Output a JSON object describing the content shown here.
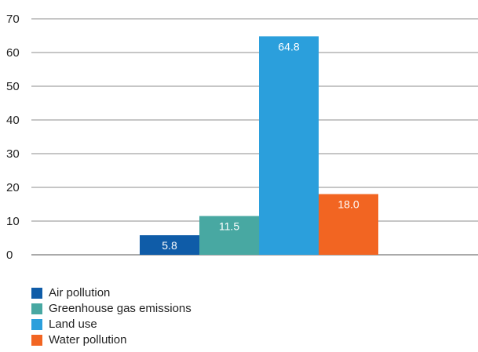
{
  "chart_data": {
    "type": "bar",
    "categories": [
      "Air pollution",
      "Greenhouse gas emissions",
      "Land use",
      "Water pollution"
    ],
    "values": [
      5.8,
      11.5,
      64.8,
      18.0
    ],
    "value_labels": [
      "5.8",
      "11.5",
      "64.8",
      "18.0"
    ],
    "colors": [
      "#0f5ca8",
      "#48a8a2",
      "#2b9fdc",
      "#f26522"
    ],
    "title": "",
    "xlabel": "",
    "ylabel": "",
    "ylim": [
      0,
      70
    ],
    "yticks": [
      0,
      10,
      20,
      30,
      40,
      50,
      60,
      70
    ],
    "grid": true,
    "legend_position": "bottom-left"
  }
}
